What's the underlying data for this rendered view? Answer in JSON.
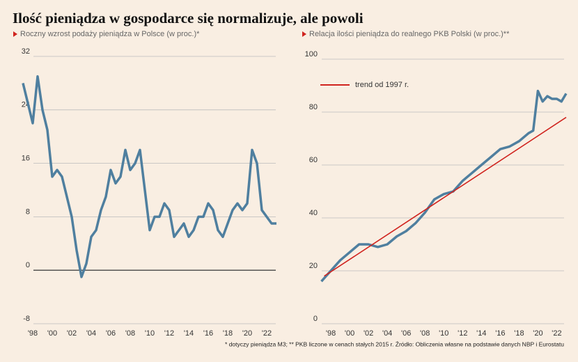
{
  "title": "Ilość pieniądza w gospodarce się normalizuje, ale powoli",
  "footnote": "* dotyczy pieniądza M3; ** PKB liczone w cenach stałych 2015 r. Źródło: Obliczenia własne na podstawie danych NBP i Eurostatu",
  "chart_data": [
    {
      "type": "line",
      "subtitle": "Roczny wzrost podaży pieniądza w Polsce (w proc.)*",
      "xlim": [
        1997,
        2023
      ],
      "ylim": [
        -8,
        32
      ],
      "yticks": [
        -8,
        0,
        8,
        16,
        24,
        32
      ],
      "xticks": [
        {
          "value": 1998,
          "label": "'98"
        },
        {
          "value": 2000,
          "label": "'00"
        },
        {
          "value": 2002,
          "label": "'02"
        },
        {
          "value": 2004,
          "label": "'04"
        },
        {
          "value": 2006,
          "label": "'06"
        },
        {
          "value": 2008,
          "label": "'08"
        },
        {
          "value": 2010,
          "label": "'10"
        },
        {
          "value": 2012,
          "label": "'12"
        },
        {
          "value": 2014,
          "label": "'14"
        },
        {
          "value": 2016,
          "label": "'16"
        },
        {
          "value": 2018,
          "label": "'18"
        },
        {
          "value": 2020,
          "label": "'20"
        },
        {
          "value": 2022,
          "label": "'22"
        }
      ],
      "grid": true,
      "series": [
        {
          "color": "#4f7f9f",
          "x": [
            1997,
            1997.5,
            1998,
            1998.5,
            1999,
            1999.5,
            2000,
            2000.5,
            2001,
            2001.5,
            2002,
            2002.5,
            2003,
            2003.5,
            2004,
            2004.5,
            2005,
            2005.5,
            2006,
            2006.5,
            2007,
            2007.5,
            2008,
            2008.5,
            2009,
            2009.5,
            2010,
            2010.5,
            2011,
            2011.5,
            2012,
            2012.5,
            2013,
            2013.5,
            2014,
            2014.5,
            2015,
            2015.5,
            2016,
            2016.5,
            2017,
            2017.5,
            2018,
            2018.5,
            2019,
            2019.5,
            2020,
            2020.5,
            2021,
            2021.5,
            2022,
            2022.5,
            2023
          ],
          "values": [
            28,
            25,
            22,
            29,
            24,
            21,
            14,
            15,
            14,
            11,
            8,
            3,
            -1,
            1,
            5,
            6,
            9,
            11,
            15,
            13,
            14,
            18,
            15,
            16,
            18,
            12,
            6,
            8,
            8,
            10,
            9,
            5,
            6,
            7,
            5,
            6,
            8,
            8,
            10,
            9,
            6,
            5,
            7,
            9,
            10,
            9,
            10,
            18,
            16,
            9,
            8,
            7,
            7
          ]
        }
      ]
    },
    {
      "type": "line",
      "subtitle": "Relacja ilości pieniądza do realnego PKB Polski (w proc.)**",
      "xlim": [
        1996,
        2023
      ],
      "ylim": [
        0,
        100
      ],
      "yticks": [
        0,
        20,
        40,
        60,
        80,
        100
      ],
      "xticks": [
        {
          "value": 1998,
          "label": "'98"
        },
        {
          "value": 2000,
          "label": "'00"
        },
        {
          "value": 2002,
          "label": "'02"
        },
        {
          "value": 2004,
          "label": "'04"
        },
        {
          "value": 2006,
          "label": "'06"
        },
        {
          "value": 2008,
          "label": "'08"
        },
        {
          "value": 2010,
          "label": "'10"
        },
        {
          "value": 2012,
          "label": "'12"
        },
        {
          "value": 2014,
          "label": "'14"
        },
        {
          "value": 2016,
          "label": "'16"
        },
        {
          "value": 2018,
          "label": "'18"
        },
        {
          "value": 2020,
          "label": "'20"
        },
        {
          "value": 2022,
          "label": "'22"
        }
      ],
      "grid": true,
      "series": [
        {
          "color": "#4f7f9f",
          "x": [
            1997,
            1998,
            1999,
            2000,
            2001,
            2002,
            2003,
            2004,
            2005,
            2006,
            2007,
            2008,
            2009,
            2010,
            2011,
            2012,
            2013,
            2014,
            2015,
            2016,
            2017,
            2018,
            2019,
            2019.5,
            2020,
            2020.5,
            2021,
            2021.5,
            2022,
            2022.5,
            2023
          ],
          "values": [
            16,
            20,
            24,
            27,
            30,
            30,
            29,
            30,
            33,
            35,
            38,
            42,
            47,
            49,
            50,
            54,
            57,
            60,
            63,
            66,
            67,
            69,
            72,
            73,
            88,
            84,
            86,
            85,
            85,
            84,
            87
          ]
        },
        {
          "name": "trend od 1997 r.",
          "color": "#d0231e",
          "x": [
            1997.3,
            2023
          ],
          "values": [
            18,
            78
          ]
        }
      ]
    }
  ]
}
